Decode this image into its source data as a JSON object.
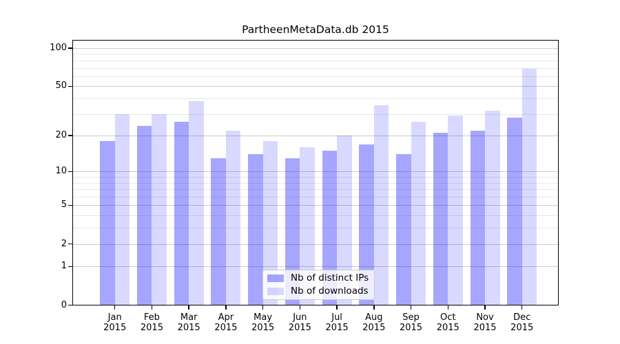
{
  "figure": {
    "background": "#ffffff"
  },
  "chart_data": {
    "type": "bar",
    "title": "PartheenMetaData.db 2015",
    "categories": [
      "Jan 2015",
      "Feb 2015",
      "Mar 2015",
      "Apr 2015",
      "May 2015",
      "Jun 2015",
      "Jul 2015",
      "Aug 2015",
      "Sep 2015",
      "Oct 2015",
      "Nov 2015",
      "Dec 2015"
    ],
    "x_tick_labels": [
      [
        "Jan",
        "2015"
      ],
      [
        "Feb",
        "2015"
      ],
      [
        "Mar",
        "2015"
      ],
      [
        "Apr",
        "2015"
      ],
      [
        "May",
        "2015"
      ],
      [
        "Jun",
        "2015"
      ],
      [
        "Jul",
        "2015"
      ],
      [
        "Aug",
        "2015"
      ],
      [
        "Sep",
        "2015"
      ],
      [
        "Oct",
        "2015"
      ],
      [
        "Nov",
        "2015"
      ],
      [
        "Dec",
        "2015"
      ]
    ],
    "series": [
      {
        "name": "Nb of distinct IPs",
        "fill": "rgba(0,0,255,0.35)",
        "solid_hex": "#a6a6ff",
        "values": [
          18,
          24,
          26,
          13,
          14,
          13,
          15,
          17,
          14,
          21,
          22,
          28
        ]
      },
      {
        "name": "Nb of downloads",
        "fill": "rgba(0,0,255,0.15)",
        "solid_hex": "#d9d9ff",
        "values": [
          30,
          30,
          38,
          22,
          18,
          16,
          20,
          35,
          26,
          29,
          32,
          69
        ]
      }
    ],
    "xlabel": "",
    "ylabel": "",
    "yscale": "log1p",
    "ylim": [
      0,
      117
    ],
    "y_ticks": [
      0,
      1,
      2,
      5,
      10,
      20,
      50,
      100
    ],
    "y_tick_labels": [
      "0",
      "1",
      "2",
      "5",
      "10",
      "20",
      "50",
      "100"
    ],
    "y_minor_gridlines": [
      3,
      4,
      6,
      7,
      8,
      9,
      30,
      40,
      60,
      70,
      80,
      90
    ],
    "grid": true,
    "legend": {
      "position": "lower-center",
      "items": [
        "Nb of distinct IPs",
        "Nb of downloads"
      ]
    },
    "colors": {
      "bar_distinct_ips": "#a6a6ff",
      "bar_downloads": "#d9d9ff",
      "grid_major": "#cccccc",
      "grid_minor": "#e8e8e8",
      "axis": "#000000",
      "text": "#000000",
      "legend_bg": "rgba(255,255,255,0.8)",
      "legend_border": "#cccccc"
    }
  }
}
